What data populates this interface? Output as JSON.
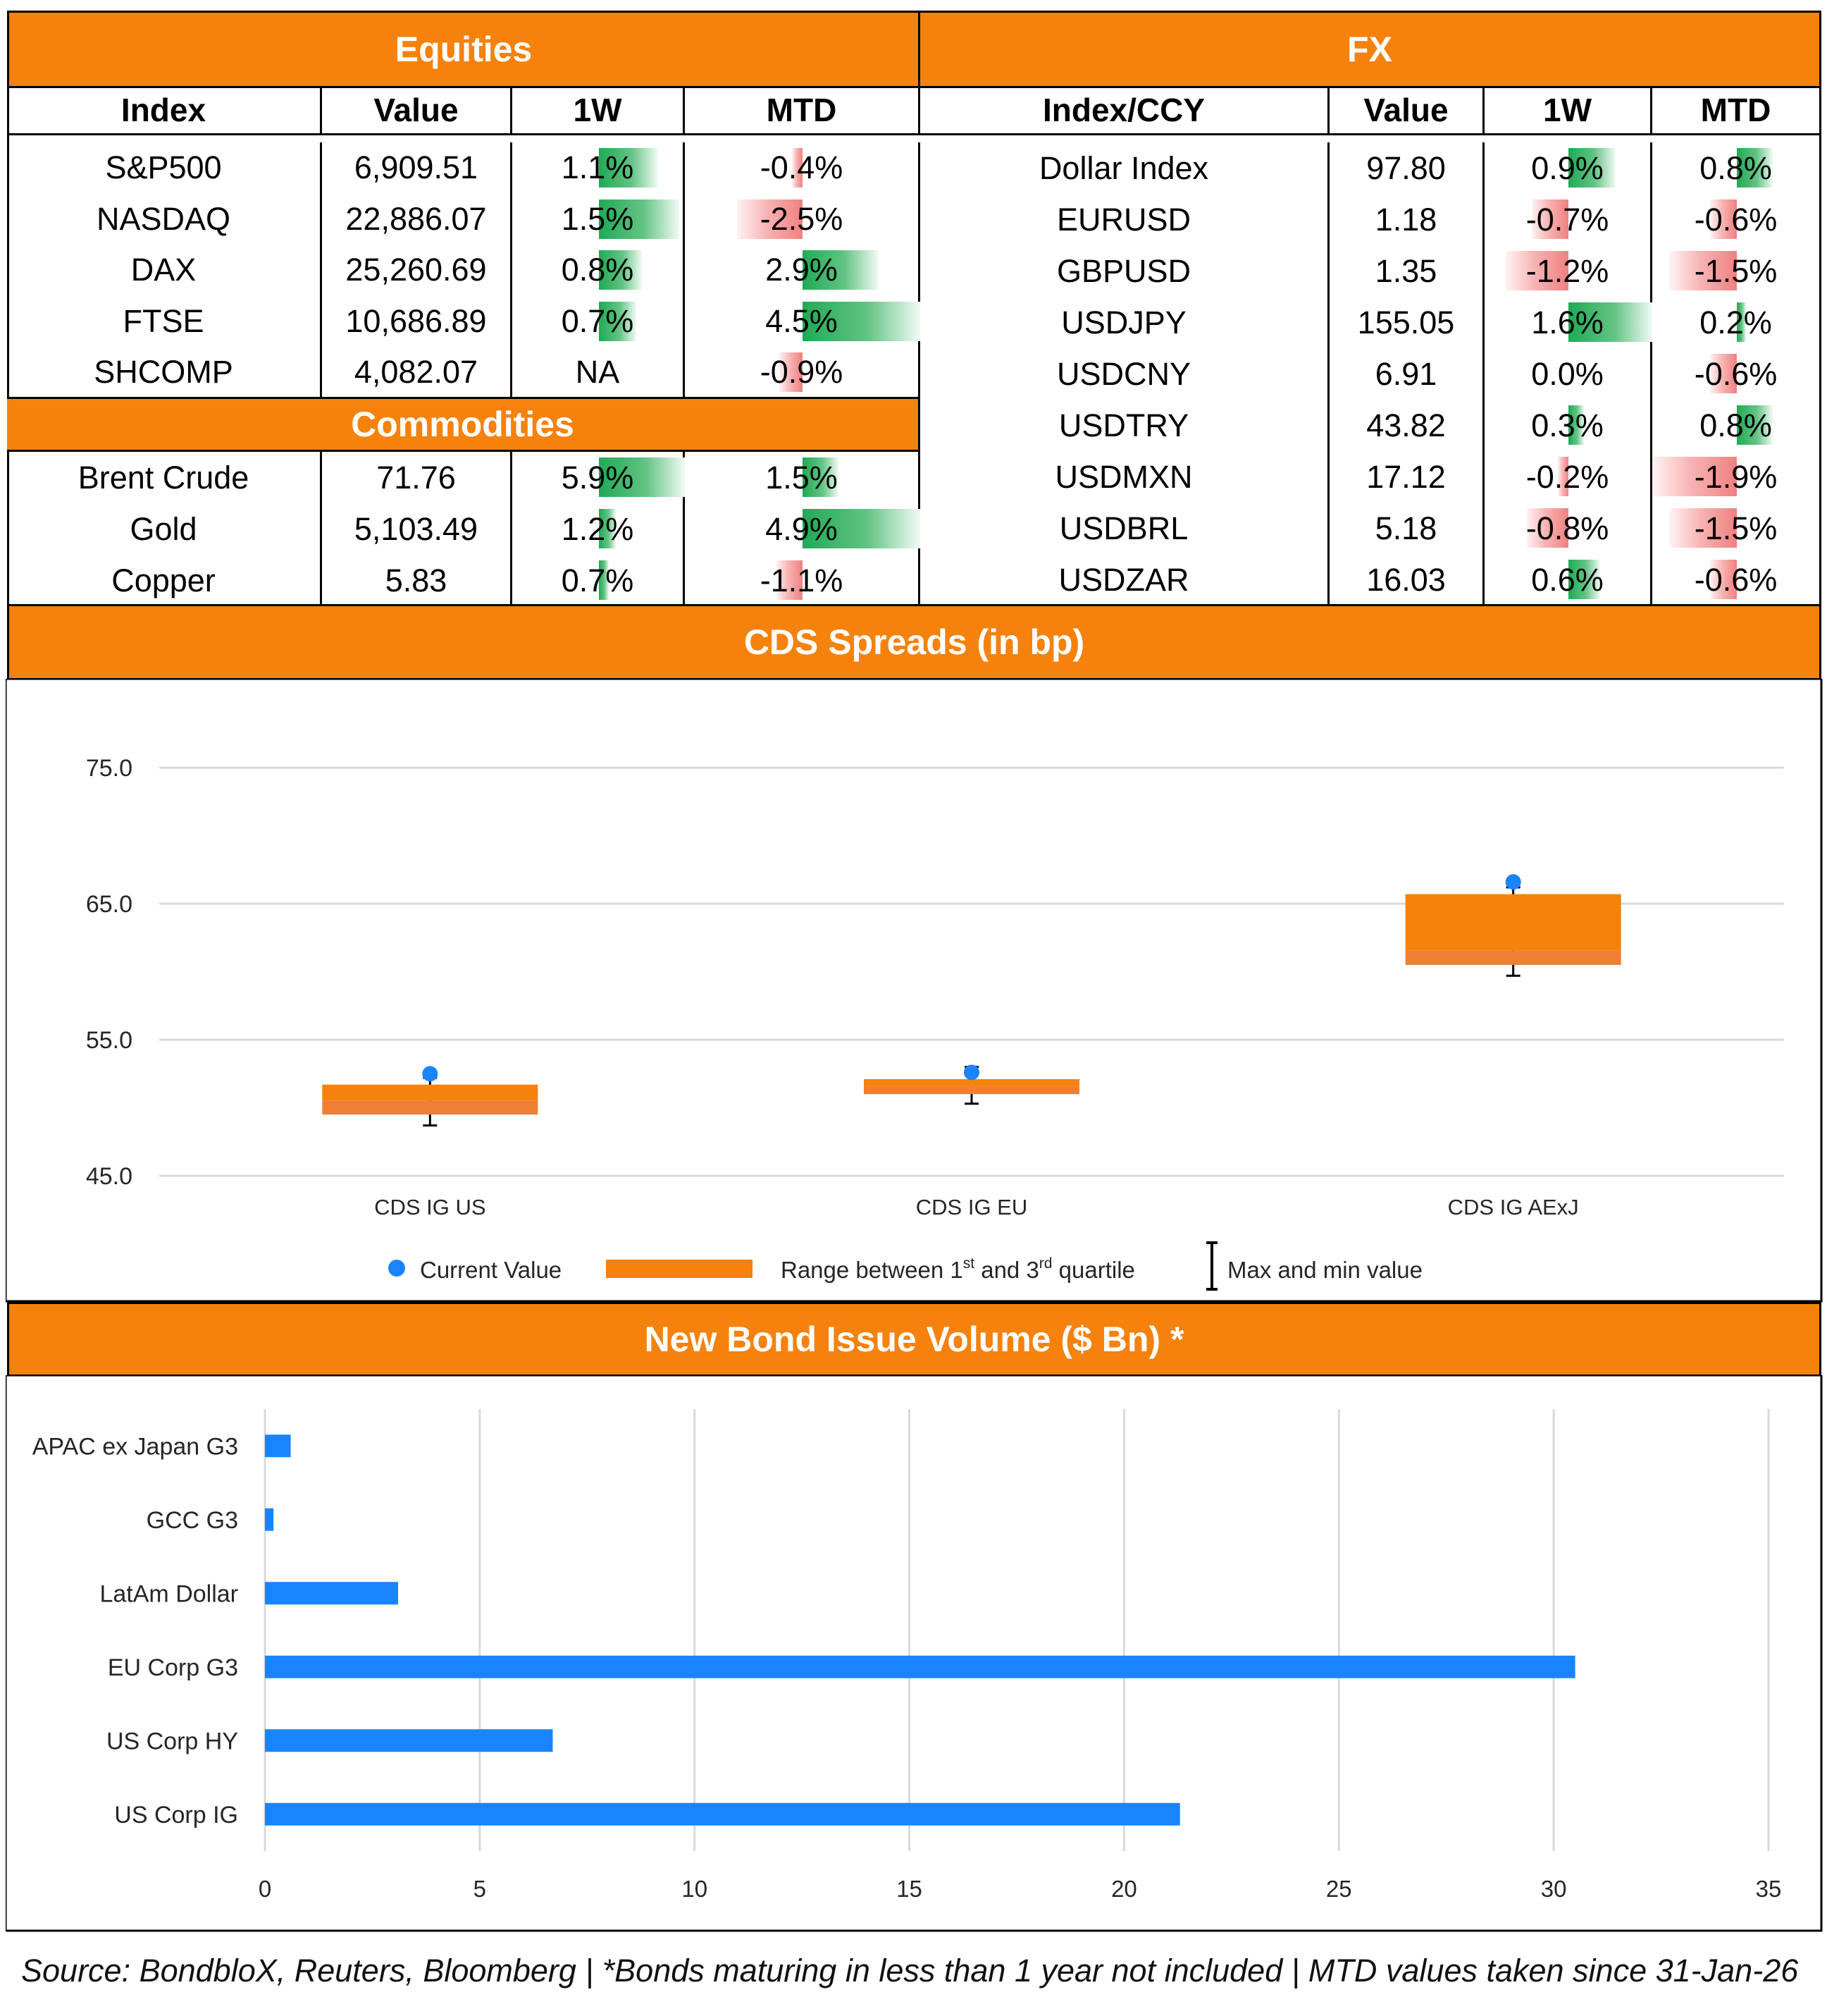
{
  "equities": {
    "title": "Equities",
    "headers": [
      "Index",
      "Value",
      "1W",
      "MTD"
    ],
    "rows": [
      {
        "name": "S&P500",
        "value": "6,909.51",
        "w1": "1.1%",
        "mtd": "-0.4%",
        "w1_num": 1.1,
        "mtd_num": -0.4
      },
      {
        "name": "NASDAQ",
        "value": "22,886.07",
        "w1": "1.5%",
        "mtd": "-2.5%",
        "w1_num": 1.5,
        "mtd_num": -2.5
      },
      {
        "name": "DAX",
        "value": "25,260.69",
        "w1": "0.8%",
        "mtd": "2.9%",
        "w1_num": 0.8,
        "mtd_num": 2.9
      },
      {
        "name": "FTSE",
        "value": "10,686.89",
        "w1": "0.7%",
        "mtd": "4.5%",
        "w1_num": 0.7,
        "mtd_num": 4.5
      },
      {
        "name": "SHCOMP",
        "value": "4,082.07",
        "w1": "NA",
        "mtd": "-0.9%",
        "w1_num": null,
        "mtd_num": -0.9
      }
    ]
  },
  "commodities": {
    "title": "Commodities",
    "rows": [
      {
        "name": "Brent Crude",
        "value": "71.76",
        "w1": "5.9%",
        "mtd": "1.5%",
        "w1_num": 5.9,
        "mtd_num": 1.5
      },
      {
        "name": "Gold",
        "value": "5,103.49",
        "w1": "1.2%",
        "mtd": "4.9%",
        "w1_num": 1.2,
        "mtd_num": 4.9
      },
      {
        "name": "Copper",
        "value": "5.83",
        "w1": "0.7%",
        "mtd": "-1.1%",
        "w1_num": 0.7,
        "mtd_num": -1.1
      }
    ]
  },
  "fx": {
    "title": "FX",
    "headers": [
      "Index/CCY",
      "Value",
      "1W",
      "MTD"
    ],
    "rows": [
      {
        "name": "Dollar Index",
        "value": "97.80",
        "w1": "0.9%",
        "mtd": "0.8%",
        "w1_num": 0.9,
        "mtd_num": 0.8
      },
      {
        "name": "EURUSD",
        "value": "1.18",
        "w1": "-0.7%",
        "mtd": "-0.6%",
        "w1_num": -0.7,
        "mtd_num": -0.6
      },
      {
        "name": "GBPUSD",
        "value": "1.35",
        "w1": "-1.2%",
        "mtd": "-1.5%",
        "w1_num": -1.2,
        "mtd_num": -1.5
      },
      {
        "name": "USDJPY",
        "value": "155.05",
        "w1": "1.6%",
        "mtd": "0.2%",
        "w1_num": 1.6,
        "mtd_num": 0.2
      },
      {
        "name": "USDCNY",
        "value": "6.91",
        "w1": "0.0%",
        "mtd": "-0.6%",
        "w1_num": 0.0,
        "mtd_num": -0.6
      },
      {
        "name": "USDTRY",
        "value": "43.82",
        "w1": "0.3%",
        "mtd": "0.8%",
        "w1_num": 0.3,
        "mtd_num": 0.8
      },
      {
        "name": "USDMXN",
        "value": "17.12",
        "w1": "-0.2%",
        "mtd": "-1.9%",
        "w1_num": -0.2,
        "mtd_num": -1.9
      },
      {
        "name": "USDBRL",
        "value": "5.18",
        "w1": "-0.8%",
        "mtd": "-1.5%",
        "w1_num": -0.8,
        "mtd_num": -1.5
      },
      {
        "name": "USDZAR",
        "value": "16.03",
        "w1": "0.6%",
        "mtd": "-0.6%",
        "w1_num": 0.6,
        "mtd_num": -0.6
      }
    ]
  },
  "cds": {
    "title": "CDS Spreads (in bp)",
    "legend": {
      "current": "Current Value",
      "range": "Range between 1",
      "range_sup1": "st",
      "range_mid": " and 3",
      "range_sup2": "rd",
      "range_end": " quartile",
      "minmax": "Max and min value"
    }
  },
  "bonds": {
    "title": "New Bond Issue Volume ($ Bn) *"
  },
  "chart_data": [
    {
      "type": "box",
      "title": "CDS Spreads (in bp)",
      "categories": [
        "CDS IG US",
        "CDS IG EU",
        "CDS IG AExJ"
      ],
      "q1": [
        49.5,
        51.0,
        60.5
      ],
      "q3": [
        51.7,
        52.1,
        65.7
      ],
      "min": [
        48.7,
        50.3,
        59.7
      ],
      "max": [
        52.2,
        53.0,
        66.2
      ],
      "current": [
        52.5,
        52.6,
        66.6
      ],
      "ylim": [
        45,
        75
      ],
      "yticks": [
        "45.0",
        "55.0",
        "65.0",
        "75.0"
      ],
      "ytick_values": [
        45,
        55,
        65,
        75
      ],
      "colors": {
        "box": "#f5820d",
        "box_lower": "#ee7f34",
        "dot": "#1a84ff"
      }
    },
    {
      "type": "bar",
      "orientation": "horizontal",
      "title": "New Bond Issue Volume ($ Bn) *",
      "categories": [
        "APAC ex Japan G3",
        "GCC G3",
        "LatAm Dollar",
        "EU Corp G3",
        "US Corp HY",
        "US Corp IG"
      ],
      "values": [
        0.6,
        0.2,
        3.1,
        30.5,
        6.7,
        21.3
      ],
      "xlim": [
        0,
        35
      ],
      "xticks": [
        "0",
        "5",
        "10",
        "15",
        "20",
        "25",
        "30",
        "35"
      ],
      "xtick_values": [
        0,
        5,
        10,
        15,
        20,
        25,
        30,
        35
      ],
      "color": "#1a84ff"
    }
  ],
  "footer": "Source: BondbloX, Reuters, Bloomberg | *Bonds maturing in less than 1 year not included | MTD values taken since 31-Jan-26"
}
